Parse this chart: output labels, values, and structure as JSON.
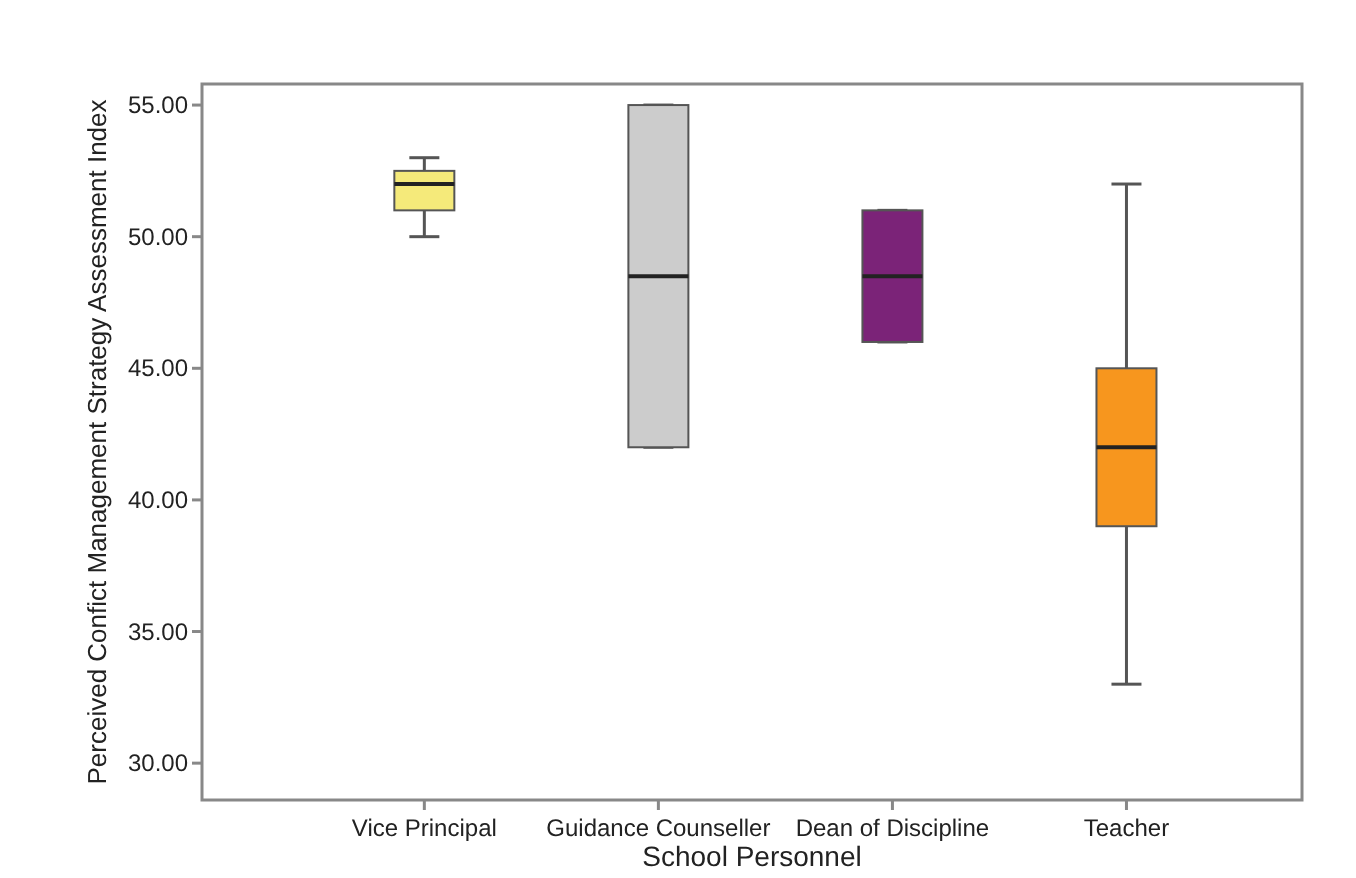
{
  "chart_data": {
    "type": "box",
    "xlabel": "School Personnel",
    "ylabel": "Perceived Confict Management Strategy Assessment Index",
    "categories": [
      "Vice Principal",
      "Guidance Counseller",
      "Dean of Discipline",
      "Teacher"
    ],
    "colors": [
      "#f5ea7a",
      "#cccccc",
      "#7b2378",
      "#f7961e"
    ],
    "boxes": [
      {
        "low": 50,
        "q1": 51,
        "median": 52,
        "q3": 52.5,
        "high": 53
      },
      {
        "low": 42,
        "q1": 42,
        "median": 48.5,
        "q3": 55,
        "high": 55
      },
      {
        "low": 46,
        "q1": 46,
        "median": 48.5,
        "q3": 51,
        "high": 51
      },
      {
        "low": 33,
        "q1": 39,
        "median": 42,
        "q3": 45,
        "high": 52
      }
    ],
    "ylim": [
      28.6,
      55.8
    ],
    "yticks": [
      {
        "value": 30,
        "label": "30.00"
      },
      {
        "value": 35,
        "label": "35.00"
      },
      {
        "value": 40,
        "label": "40.00"
      },
      {
        "value": 45,
        "label": "45.00"
      },
      {
        "value": 50,
        "label": "50.00"
      },
      {
        "value": 55,
        "label": "55.00"
      }
    ],
    "grid": false
  }
}
